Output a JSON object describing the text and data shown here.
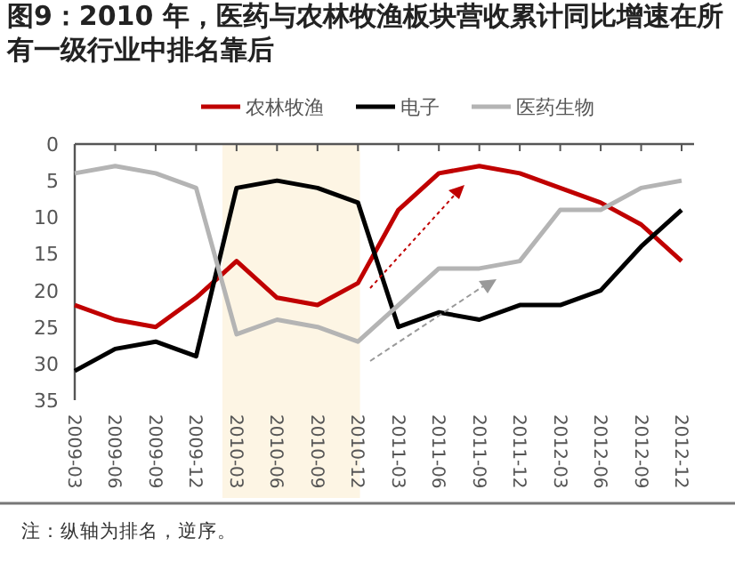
{
  "chart_data": {
    "type": "line",
    "title": "图9：2010 年，医药与农林牧渔板块营收累计同比增速在所有一级行业中排名靠后",
    "categories": [
      "2009-03",
      "2009-06",
      "2009-09",
      "2009-12",
      "2010-03",
      "2010-06",
      "2010-09",
      "2010-12",
      "2011-03",
      "2011-06",
      "2011-09",
      "2011-12",
      "2012-03",
      "2012-06",
      "2012-09",
      "2012-12"
    ],
    "series": [
      {
        "name": "农林牧渔",
        "color": "#c00000",
        "values": [
          22,
          24,
          25,
          21,
          16,
          21,
          22,
          19,
          9,
          4,
          3,
          4,
          6,
          8,
          11,
          16
        ]
      },
      {
        "name": "电子",
        "color": "#000000",
        "values": [
          31,
          28,
          27,
          29,
          6,
          5,
          6,
          8,
          25,
          23,
          24,
          22,
          22,
          20,
          14,
          9
        ]
      },
      {
        "name": "医药生物",
        "color": "#b4b4b4",
        "values": [
          4,
          3,
          4,
          6,
          26,
          24,
          25,
          27,
          22,
          17,
          17,
          16,
          9,
          9,
          6,
          5
        ]
      }
    ],
    "ylim": [
      35,
      0
    ],
    "yticks": [
      0,
      5,
      10,
      15,
      20,
      25,
      30,
      35
    ],
    "bands": [
      {
        "axis": "x",
        "from": "2010-03",
        "to": "2010-12",
        "color": "#fdf5e4"
      }
    ],
    "legend": "top",
    "grid": false,
    "marker": "none",
    "line_style": "solid",
    "annotations": [
      "注：纵轴为排名，逆序。"
    ]
  }
}
